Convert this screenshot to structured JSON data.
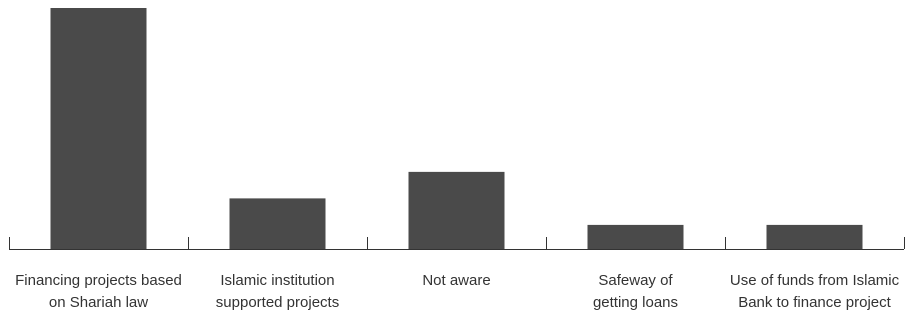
{
  "chart_data": {
    "type": "bar",
    "categories": [
      "Financing projects based\non Shariah law",
      "Islamic institution\nsupported projects",
      "Not aware",
      "Safeway of\ngetting loans",
      "Use of funds from Islamic\nBank to finance project"
    ],
    "values": [
      100,
      21,
      32,
      10,
      10
    ],
    "ylim": [
      0,
      100
    ],
    "title": "",
    "xlabel": "",
    "ylabel": "",
    "grid": false,
    "legend": "none",
    "bar_color": "#4a4a4a",
    "axis_color": "#333333"
  }
}
